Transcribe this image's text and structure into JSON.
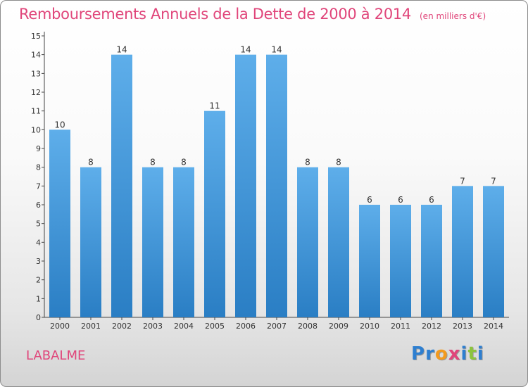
{
  "title": "Remboursements Annuels de la Dette de 2000 à 2014",
  "subtitle": "(en milliers d'€)",
  "commune": "LABALME",
  "logo": {
    "letters": [
      "P",
      "r",
      "o",
      "x",
      "i",
      "t",
      "i"
    ],
    "colors": [
      "#2e7fd0",
      "#2e7fd0",
      "#f39a1e",
      "#e0457a",
      "#2e7fd0",
      "#8cc43c",
      "#2e7fd0"
    ]
  },
  "colors": {
    "bar_light": "#5eaeea",
    "bar_dark": "#2a7ec4",
    "accent": "#e0457a"
  },
  "chart_data": {
    "type": "bar",
    "categories": [
      "2000",
      "2001",
      "2002",
      "2003",
      "2004",
      "2005",
      "2006",
      "2007",
      "2008",
      "2009",
      "2010",
      "2011",
      "2012",
      "2013",
      "2014"
    ],
    "values": [
      10,
      8,
      14,
      8,
      8,
      11,
      14,
      14,
      8,
      8,
      6,
      6,
      6,
      7,
      7
    ],
    "data_labels": [
      "10",
      "8",
      "14",
      "8",
      "8",
      "11",
      "14",
      "14",
      "8",
      "8",
      "6",
      "6",
      "6",
      "7",
      "7"
    ],
    "yticks": [
      "0",
      "1",
      "2",
      "3",
      "4",
      "5",
      "6",
      "7",
      "8",
      "9",
      "10",
      "11",
      "12",
      "13",
      "14",
      "15"
    ],
    "ylim": [
      0,
      15
    ],
    "grid": false,
    "legend": "none"
  }
}
